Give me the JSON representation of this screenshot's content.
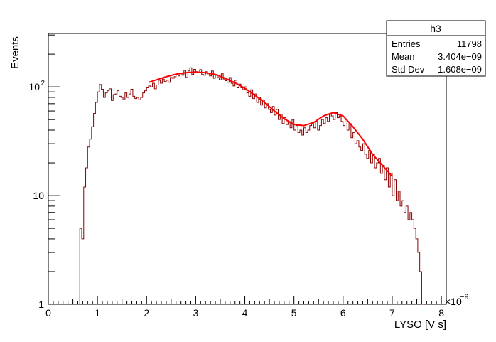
{
  "chart_data": {
    "type": "histogram",
    "title": "",
    "xlabel": "LYSO [V s]",
    "ylabel": "Events",
    "x_exponent_label": "×10",
    "x_exponent_power": "−9",
    "x_units_scale": 1e-09,
    "xlim": [
      0,
      8.1
    ],
    "ylim": [
      1,
      310
    ],
    "yscale": "log",
    "grid": false,
    "x_ticks": [
      "0",
      "1",
      "2",
      "3",
      "4",
      "5",
      "6",
      "7",
      "8"
    ],
    "y_ticks": [
      "1",
      "10",
      "10^2"
    ],
    "stats_box": {
      "title": "h3",
      "rows": [
        {
          "label": "Entries",
          "value": "11798"
        },
        {
          "label": "Mean",
          "value": "3.404e−09"
        },
        {
          "label": "Std Dev",
          "value": "1.608e−09"
        }
      ],
      "placement": "top-right"
    },
    "histogram": {
      "name": "h3",
      "color": "#8b0000",
      "bin_width": 0.04,
      "x_start": 0.64,
      "counts": [
        5,
        4,
        12,
        18,
        28,
        33,
        43,
        57,
        72,
        90,
        105,
        95,
        80,
        88,
        92,
        96,
        75,
        85,
        86,
        92,
        82,
        80,
        76,
        88,
        80,
        86,
        95,
        82,
        78,
        80,
        76,
        80,
        88,
        92,
        98,
        102,
        100,
        108,
        96,
        104,
        115,
        108,
        118,
        112,
        115,
        110,
        122,
        120,
        124,
        130,
        126,
        134,
        128,
        142,
        122,
        140,
        150,
        130,
        145,
        138,
        136,
        144,
        130,
        128,
        138,
        132,
        126,
        140,
        120,
        130,
        122,
        116,
        132,
        118,
        114,
        110,
        122,
        108,
        102,
        115,
        98,
        106,
        98,
        94,
        100,
        88,
        82,
        94,
        78,
        86,
        72,
        80,
        68,
        76,
        64,
        70,
        62,
        58,
        66,
        55,
        62,
        50,
        56,
        46,
        52,
        45,
        48,
        42,
        50,
        40,
        44,
        38,
        40,
        36,
        42,
        38,
        40,
        44,
        46,
        42,
        48,
        40,
        44,
        50,
        46,
        52,
        48,
        56,
        54,
        50,
        58,
        52,
        54,
        48,
        44,
        50,
        40,
        46,
        34,
        38,
        30,
        32,
        28,
        26,
        30,
        24,
        22,
        26,
        20,
        24,
        18,
        20,
        22,
        16,
        19,
        14,
        18,
        12,
        16,
        10,
        14,
        9,
        11,
        8,
        9,
        7,
        8,
        6,
        7,
        6,
        5,
        4,
        3,
        2,
        1
      ]
    },
    "fit": {
      "color": "#ff0000",
      "x": [
        2.04,
        2.2,
        2.4,
        2.6,
        2.8,
        3.0,
        3.2,
        3.4,
        3.6,
        3.8,
        4.0,
        4.2,
        4.4,
        4.6,
        4.8,
        5.0,
        5.2,
        5.4,
        5.6,
        5.8,
        6.0,
        6.2,
        6.4,
        6.6,
        6.8,
        7.0
      ],
      "y": [
        110,
        116,
        124,
        131,
        135,
        137,
        135,
        130,
        120,
        109,
        97,
        84,
        72,
        60,
        51,
        45,
        44,
        47,
        54,
        58,
        54,
        43,
        33,
        24,
        19,
        15
      ]
    }
  }
}
